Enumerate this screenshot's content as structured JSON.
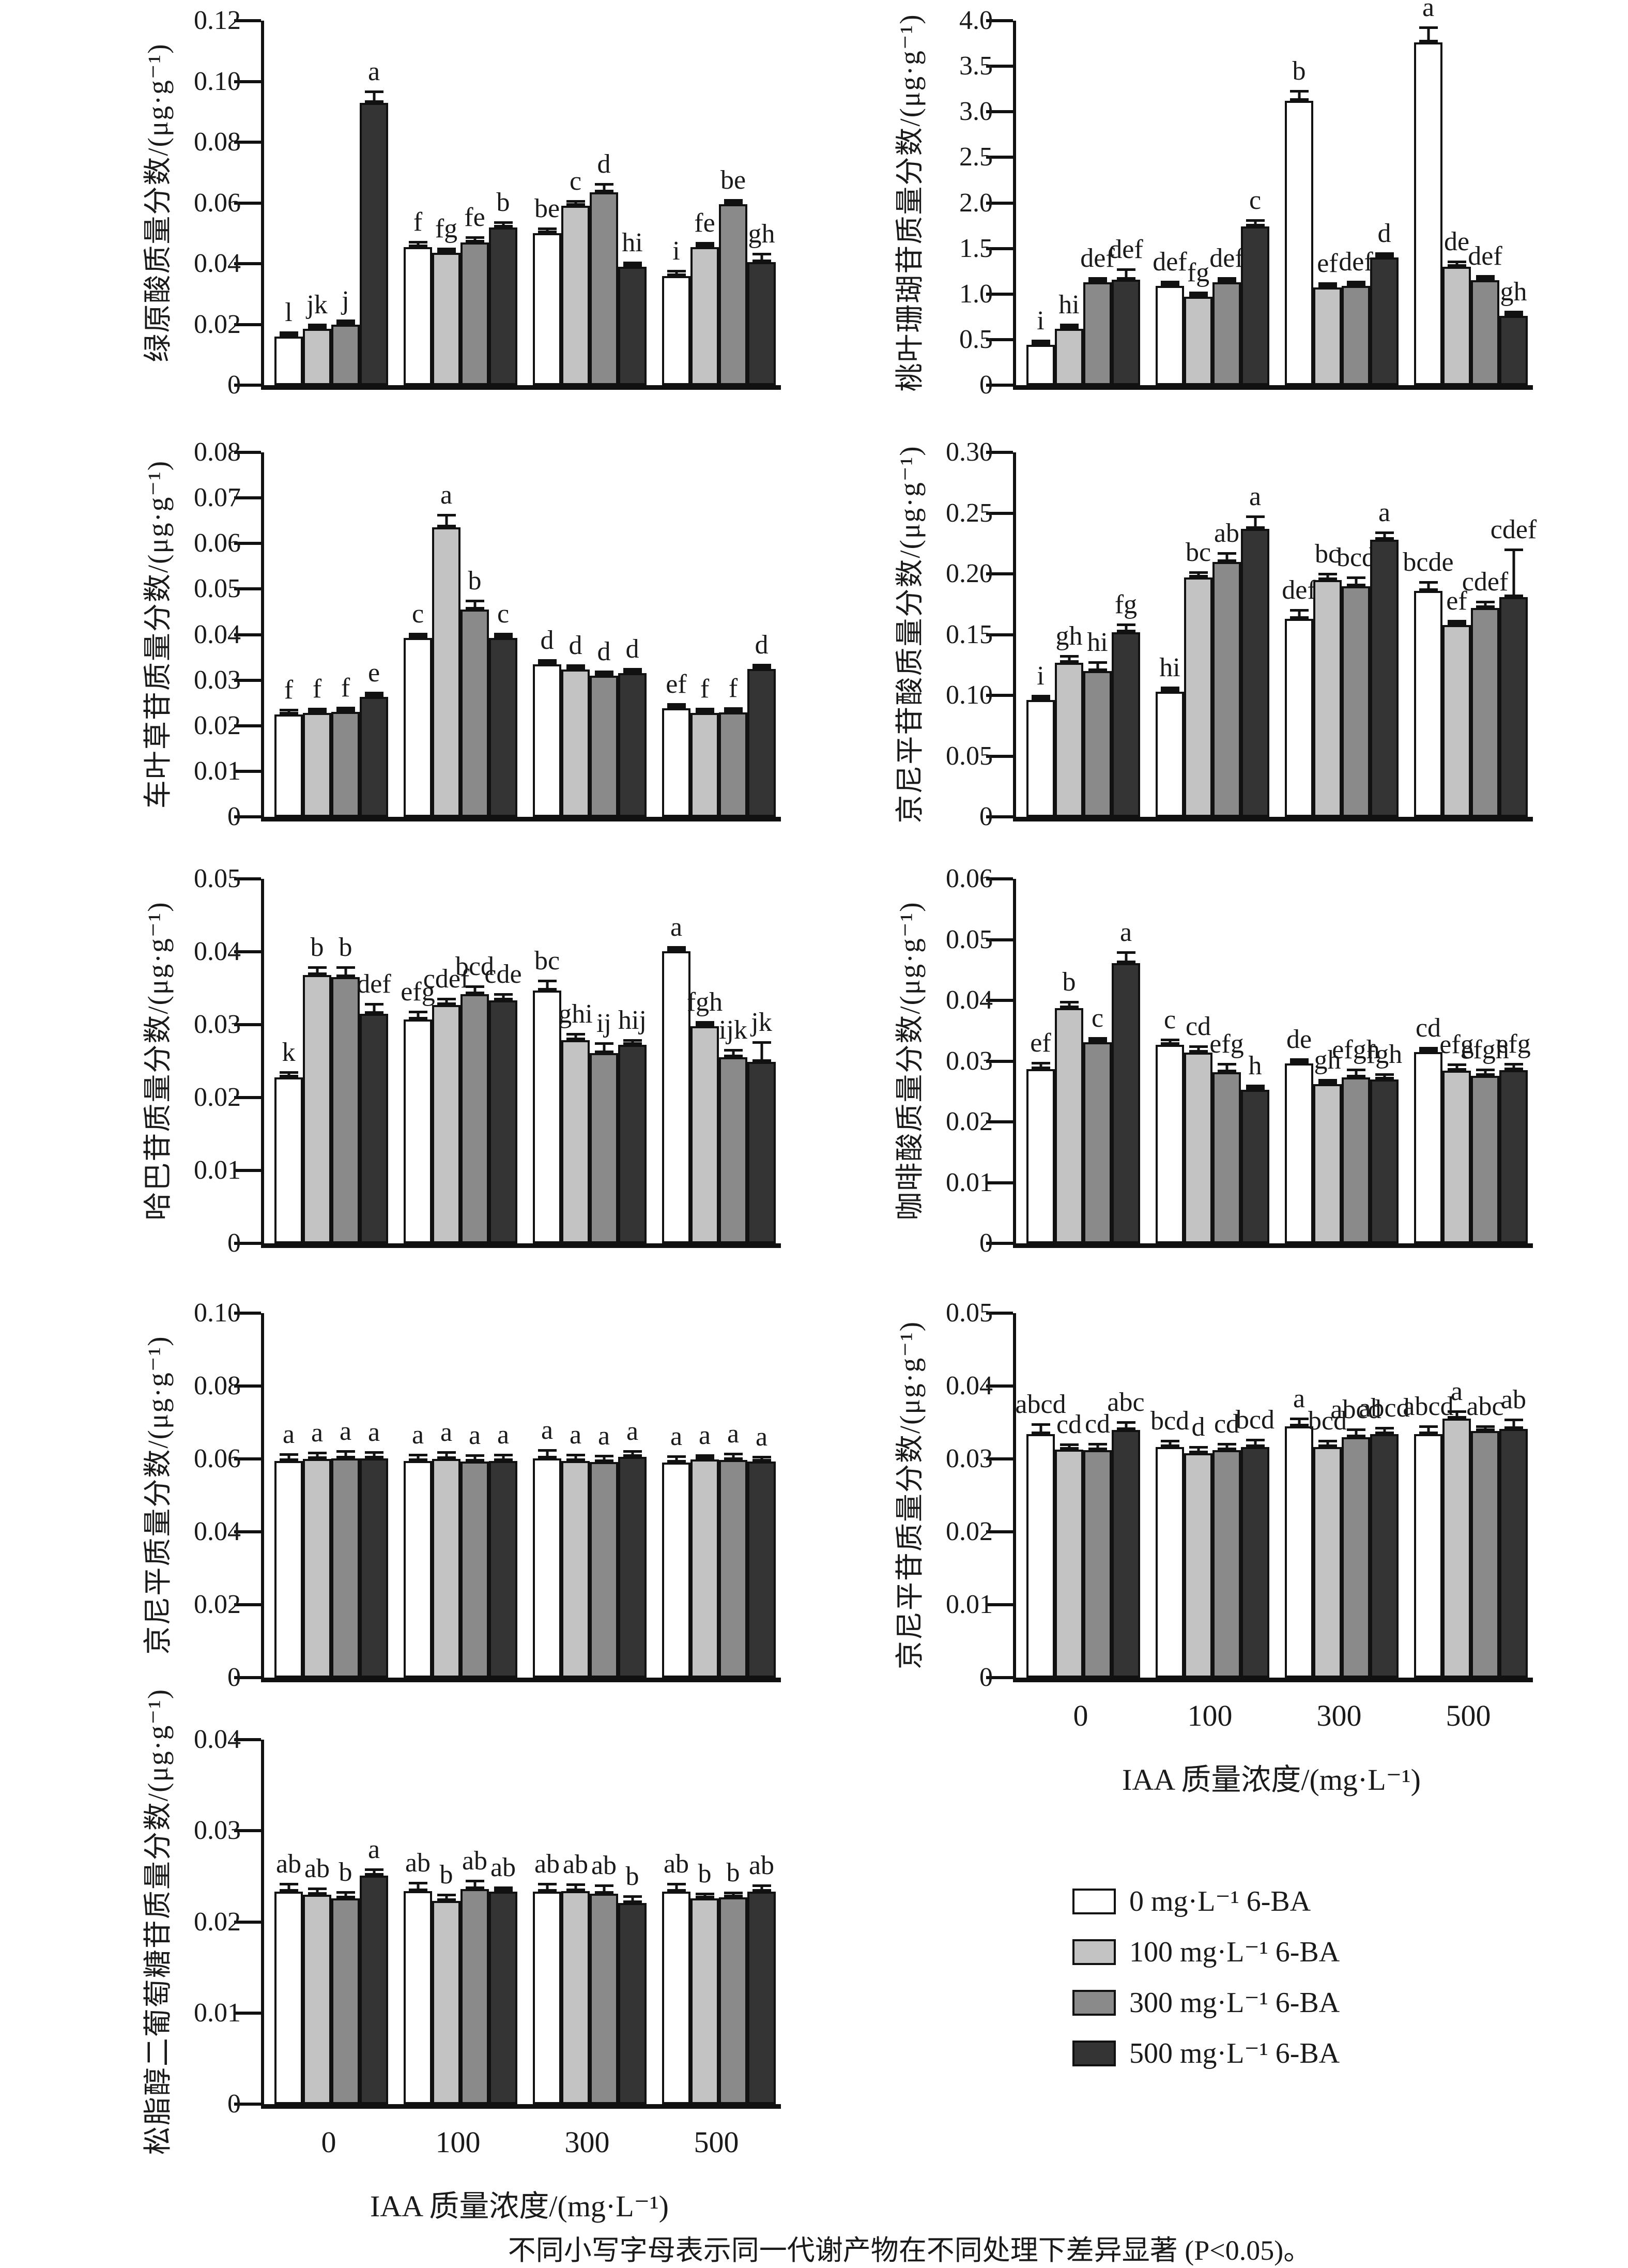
{
  "figure": {
    "caption": "不同小写字母表示同一代谢产物在不同处理下差异显著 (P<0.05)。"
  },
  "legend": {
    "entries": [
      {
        "label": "0 mg·L⁻¹ 6-BA",
        "color": "#ffffff"
      },
      {
        "label": "100 mg·L⁻¹ 6-BA",
        "color": "#c3c3c3"
      },
      {
        "label": "300 mg·L⁻¹ 6-BA",
        "color": "#8a8a8a"
      },
      {
        "label": "500 mg·L⁻¹ 6-BA",
        "color": "#343434"
      }
    ]
  },
  "chart_data": [
    {
      "id": "chlorogenic-acid",
      "type": "bar",
      "ylabel": "绿原酸质量分数/(μg·g⁻¹)",
      "ylim": [
        0,
        0.12
      ],
      "yticks": [
        "0",
        "0.02",
        "0.04",
        "0.06",
        "0.08",
        "0.10",
        "0.12"
      ],
      "categories": [
        "0",
        "100",
        "300",
        "500"
      ],
      "show_x_ticks": false,
      "series": [
        {
          "name": "0 mg·L⁻¹ 6-BA",
          "values": [
            0.016,
            0.0455,
            0.05,
            0.036
          ],
          "errors": [
            0.001,
            0.002,
            0.002,
            0.002
          ],
          "letters": [
            "l",
            "f",
            "be",
            "i"
          ]
        },
        {
          "name": "100 mg·L⁻¹ 6-BA",
          "values": [
            0.0185,
            0.0435,
            0.059,
            0.0455
          ],
          "errors": [
            0.001,
            0.0015,
            0.002,
            0.0015
          ],
          "letters": [
            "jk",
            "fg",
            "c",
            "fe"
          ]
        },
        {
          "name": "300 mg·L⁻¹ 6-BA",
          "values": [
            0.02,
            0.047,
            0.0635,
            0.0595
          ],
          "errors": [
            0.0015,
            0.002,
            0.003,
            0.0015
          ],
          "letters": [
            "j",
            "fe",
            "d",
            "be"
          ]
        },
        {
          "name": "500 mg·L⁻¹ 6-BA",
          "values": [
            0.093,
            0.052,
            0.039,
            0.0405
          ],
          "errors": [
            0.004,
            0.002,
            0.0015,
            0.003
          ],
          "letters": [
            "a",
            "b",
            "hi",
            "gh"
          ]
        }
      ]
    },
    {
      "id": "aucubin",
      "type": "bar",
      "ylabel": "桃叶珊瑚苷质量分数/(μg·g⁻¹)",
      "ylim": [
        0,
        4.0
      ],
      "yticks": [
        "0",
        "0.5",
        "1.0",
        "1.5",
        "2.0",
        "2.5",
        "3.0",
        "3.5",
        "4.0"
      ],
      "categories": [
        "0",
        "100",
        "300",
        "500"
      ],
      "show_x_ticks": false,
      "series": [
        {
          "name": "0 mg·L⁻¹ 6-BA",
          "values": [
            0.44,
            1.09,
            3.12,
            3.76
          ],
          "errors": [
            0.02,
            0.05,
            0.12,
            0.18
          ],
          "letters": [
            "i",
            "def",
            "b",
            "a"
          ]
        },
        {
          "name": "100 mg·L⁻¹ 6-BA",
          "values": [
            0.62,
            0.97,
            1.07,
            1.3
          ],
          "errors": [
            0.03,
            0.04,
            0.05,
            0.07
          ],
          "letters": [
            "hi",
            "fg",
            "ef",
            "de"
          ]
        },
        {
          "name": "300 mg·L⁻¹ 6-BA",
          "values": [
            1.13,
            1.13,
            1.09,
            1.15
          ],
          "errors": [
            0.05,
            0.05,
            0.05,
            0.06
          ],
          "letters": [
            "def",
            "def",
            "def",
            "def"
          ]
        },
        {
          "name": "500 mg·L⁻¹ 6-BA",
          "values": [
            1.16,
            1.74,
            1.4,
            0.76
          ],
          "errors": [
            0.12,
            0.08,
            0.03,
            0.05
          ],
          "letters": [
            "def",
            "c",
            "d",
            "gh"
          ]
        }
      ]
    },
    {
      "id": "asperuloside",
      "type": "bar",
      "ylabel": "车叶草苷质量分数/(μg·g⁻¹)",
      "ylim": [
        0,
        0.08
      ],
      "yticks": [
        "0",
        "0.01",
        "0.02",
        "0.03",
        "0.04",
        "0.05",
        "0.06",
        "0.07",
        "0.08"
      ],
      "categories": [
        "0",
        "100",
        "300",
        "500"
      ],
      "show_x_ticks": false,
      "series": [
        {
          "name": "0 mg·L⁻¹ 6-BA",
          "values": [
            0.0225,
            0.0393,
            0.0335,
            0.0238
          ],
          "errors": [
            0.0012,
            0.0008,
            0.0008,
            0.001
          ],
          "letters": [
            "f",
            "c",
            "d",
            "ef"
          ]
        },
        {
          "name": "100 mg·L⁻¹ 6-BA",
          "values": [
            0.0228,
            0.0635,
            0.0323,
            0.0228
          ],
          "errors": [
            0.0012,
            0.003,
            0.001,
            0.001
          ],
          "letters": [
            "f",
            "a",
            "d",
            "f"
          ]
        },
        {
          "name": "300 mg·L⁻¹ 6-BA",
          "values": [
            0.023,
            0.0455,
            0.031,
            0.0229
          ],
          "errors": [
            0.0012,
            0.0022,
            0.0008,
            0.001
          ],
          "letters": [
            "f",
            "b",
            "d",
            "f"
          ]
        },
        {
          "name": "500 mg·L⁻¹ 6-BA",
          "values": [
            0.0263,
            0.0393,
            0.0315,
            0.0325
          ],
          "errors": [
            0.0012,
            0.0008,
            0.0008,
            0.001
          ],
          "letters": [
            "e",
            "c",
            "d",
            "d"
          ]
        }
      ]
    },
    {
      "id": "geniposidic-acid",
      "type": "bar",
      "ylabel": "京尼平苷酸质量分数/(μg·g⁻¹)",
      "ylim": [
        0,
        0.3
      ],
      "yticks": [
        "0",
        "0.05",
        "0.10",
        "0.15",
        "0.20",
        "0.25",
        "0.30"
      ],
      "categories": [
        "0",
        "100",
        "300",
        "500"
      ],
      "show_x_ticks": false,
      "series": [
        {
          "name": "0 mg·L⁻¹ 6-BA",
          "values": [
            0.096,
            0.103,
            0.163,
            0.186
          ],
          "errors": [
            0.004,
            0.004,
            0.008,
            0.008
          ],
          "letters": [
            "i",
            "hi",
            "def",
            "bcde"
          ]
        },
        {
          "name": "100 mg·L⁻¹ 6-BA",
          "values": [
            0.127,
            0.197,
            0.195,
            0.158
          ],
          "errors": [
            0.006,
            0.005,
            0.006,
            0.004
          ],
          "letters": [
            "gh",
            "bc",
            "bc",
            "ef"
          ]
        },
        {
          "name": "300 mg·L⁻¹ 6-BA",
          "values": [
            0.12,
            0.21,
            0.19,
            0.172
          ],
          "errors": [
            0.008,
            0.008,
            0.008,
            0.006
          ],
          "letters": [
            "hi",
            "ab",
            "bcd",
            "cdef"
          ]
        },
        {
          "name": "500 mg·L⁻¹ 6-BA",
          "values": [
            0.152,
            0.237,
            0.228,
            0.181
          ],
          "errors": [
            0.007,
            0.011,
            0.007,
            0.04
          ],
          "letters": [
            "fg",
            "a",
            "a",
            "cdef"
          ]
        }
      ]
    },
    {
      "id": "harpagide",
      "type": "bar",
      "ylabel": "哈巴苷质量分数/(μg·g⁻¹)",
      "ylim": [
        0,
        0.05
      ],
      "yticks": [
        "0",
        "0.01",
        "0.02",
        "0.03",
        "0.04",
        "0.05"
      ],
      "categories": [
        "0",
        "100",
        "300",
        "500"
      ],
      "show_x_ticks": false,
      "series": [
        {
          "name": "0 mg·L⁻¹ 6-BA",
          "values": [
            0.0228,
            0.0307,
            0.0347,
            0.0401
          ],
          "errors": [
            0.0008,
            0.0012,
            0.0015,
            0.0004
          ],
          "letters": [
            "k",
            "efg",
            "bc",
            "a"
          ]
        },
        {
          "name": "100 mg·L⁻¹ 6-BA",
          "values": [
            0.0368,
            0.0327,
            0.0279,
            0.0298
          ],
          "errors": [
            0.0012,
            0.001,
            0.001,
            0.0003
          ],
          "letters": [
            "b",
            "cdef",
            "ghi",
            "fgh"
          ]
        },
        {
          "name": "300 mg·L⁻¹ 6-BA",
          "values": [
            0.0365,
            0.0342,
            0.0261,
            0.0255
          ],
          "errors": [
            0.0015,
            0.0012,
            0.0015,
            0.0012
          ],
          "letters": [
            "b",
            "bcd",
            "ij",
            "ijk"
          ]
        },
        {
          "name": "500 mg·L⁻¹ 6-BA",
          "values": [
            0.0315,
            0.0333,
            0.0272,
            0.0249
          ],
          "errors": [
            0.0015,
            0.001,
            0.0008,
            0.0028
          ],
          "letters": [
            "def",
            "cde",
            "hij",
            "jk"
          ]
        }
      ]
    },
    {
      "id": "caffeic-acid",
      "type": "bar",
      "ylabel": "咖啡酸质量分数/(μg·g⁻¹)",
      "ylim": [
        0,
        0.06
      ],
      "yticks": [
        "0",
        "0.01",
        "0.02",
        "0.03",
        "0.04",
        "0.05",
        "0.06"
      ],
      "categories": [
        "0",
        "100",
        "300",
        "500"
      ],
      "show_x_ticks": false,
      "series": [
        {
          "name": "0 mg·L⁻¹ 6-BA",
          "values": [
            0.0287,
            0.0327,
            0.0296,
            0.0315
          ],
          "errors": [
            0.0012,
            0.001,
            0.0008,
            0.0008
          ],
          "letters": [
            "ef",
            "c",
            "de",
            "cd"
          ]
        },
        {
          "name": "100 mg·L⁻¹ 6-BA",
          "values": [
            0.0387,
            0.0314,
            0.0262,
            0.0284
          ],
          "errors": [
            0.0012,
            0.0012,
            0.0008,
            0.0012
          ],
          "letters": [
            "b",
            "cd",
            "gh",
            "efg"
          ]
        },
        {
          "name": "300 mg·L⁻¹ 6-BA",
          "values": [
            0.0331,
            0.0282,
            0.0273,
            0.0276
          ],
          "errors": [
            0.0008,
            0.0015,
            0.0015,
            0.0012
          ],
          "letters": [
            "c",
            "efg",
            "efgh",
            "efgh"
          ]
        },
        {
          "name": "500 mg·L⁻¹ 6-BA",
          "values": [
            0.0461,
            0.0253,
            0.027,
            0.0285
          ],
          "errors": [
            0.002,
            0.0008,
            0.001,
            0.0012
          ],
          "letters": [
            "a",
            "h",
            "fgh",
            "efg"
          ]
        }
      ]
    },
    {
      "id": "genipin",
      "type": "bar",
      "ylabel": "京尼平质量分数/(μg·g⁻¹)",
      "ylim": [
        0,
        0.1
      ],
      "yticks": [
        "0",
        "0.02",
        "0.04",
        "0.06",
        "0.08",
        "0.10"
      ],
      "categories": [
        "0",
        "100",
        "300",
        "500"
      ],
      "show_x_ticks": false,
      "series": [
        {
          "name": "0 mg·L⁻¹ 6-BA",
          "values": [
            0.0595,
            0.0594,
            0.0602,
            0.059
          ],
          "errors": [
            0.002,
            0.002,
            0.0025,
            0.002
          ],
          "letters": [
            "a",
            "a",
            "a",
            "a"
          ]
        },
        {
          "name": "100 mg·L⁻¹ 6-BA",
          "values": [
            0.06,
            0.06,
            0.0594,
            0.0598
          ],
          "errors": [
            0.002,
            0.0022,
            0.002,
            0.0015
          ],
          "letters": [
            "a",
            "a",
            "a",
            "a"
          ]
        },
        {
          "name": "300 mg·L⁻¹ 6-BA",
          "values": [
            0.0602,
            0.0593,
            0.0592,
            0.0597
          ],
          "errors": [
            0.0022,
            0.002,
            0.002,
            0.002
          ],
          "letters": [
            "a",
            "a",
            "a",
            "a"
          ]
        },
        {
          "name": "500 mg·L⁻¹ 6-BA",
          "values": [
            0.0601,
            0.0594,
            0.0606,
            0.0593
          ],
          "errors": [
            0.002,
            0.002,
            0.0018,
            0.0015
          ],
          "letters": [
            "a",
            "a",
            "a",
            "a"
          ]
        }
      ]
    },
    {
      "id": "geniposide",
      "type": "bar",
      "ylabel": "京尼平苷质量分数/(μg·g⁻¹)",
      "xlabel": "IAA 质量浓度/(mg·L⁻¹)",
      "ylim": [
        0,
        0.05
      ],
      "yticks": [
        "0",
        "0.01",
        "0.02",
        "0.03",
        "0.04",
        "0.05"
      ],
      "categories": [
        "0",
        "100",
        "300",
        "500"
      ],
      "show_x_ticks": true,
      "series": [
        {
          "name": "0 mg·L⁻¹ 6-BA",
          "values": [
            0.0334,
            0.0316,
            0.0345,
            0.0334
          ],
          "errors": [
            0.0015,
            0.001,
            0.0012,
            0.0012
          ],
          "letters": [
            "abcd",
            "bcd",
            "a",
            "abcd"
          ]
        },
        {
          "name": "100 mg·L⁻¹ 6-BA",
          "values": [
            0.0313,
            0.0308,
            0.0316,
            0.0355
          ],
          "errors": [
            0.0008,
            0.001,
            0.001,
            0.0012
          ],
          "letters": [
            "cd",
            "d",
            "bcd",
            "a"
          ]
        },
        {
          "name": "300 mg·L⁻¹ 6-BA",
          "values": [
            0.0312,
            0.0312,
            0.033,
            0.0338
          ],
          "errors": [
            0.001,
            0.001,
            0.0012,
            0.0008
          ],
          "letters": [
            "cd",
            "cd",
            "abcd",
            "abc"
          ]
        },
        {
          "name": "500 mg·L⁻¹ 6-BA",
          "values": [
            0.034,
            0.0316,
            0.0334,
            0.0341
          ],
          "errors": [
            0.0012,
            0.0012,
            0.001,
            0.0014
          ],
          "letters": [
            "abc",
            "bcd",
            "abcd",
            "ab"
          ]
        }
      ]
    },
    {
      "id": "pinoresinol-diglucoside",
      "type": "bar",
      "ylabel": "松脂醇二葡萄糖苷质量分数/(μg·g⁻¹)",
      "xlabel": "IAA 质量浓度/(mg·L⁻¹)",
      "ylim": [
        0,
        0.04
      ],
      "yticks": [
        "0",
        "0.01",
        "0.02",
        "0.03",
        "0.04"
      ],
      "categories": [
        "0",
        "100",
        "300",
        "500"
      ],
      "show_x_ticks": true,
      "series": [
        {
          "name": "0 mg·L⁻¹ 6-BA",
          "values": [
            0.0233,
            0.0234,
            0.0233,
            0.0233
          ],
          "errors": [
            0.001,
            0.001,
            0.001,
            0.001
          ],
          "letters": [
            "ab",
            "ab",
            "ab",
            "ab"
          ]
        },
        {
          "name": "100 mg·L⁻¹ 6-BA",
          "values": [
            0.023,
            0.0223,
            0.0234,
            0.0226
          ],
          "errors": [
            0.0008,
            0.0008,
            0.0008,
            0.0006
          ],
          "letters": [
            "ab",
            "b",
            "ab",
            "b"
          ]
        },
        {
          "name": "300 mg·L⁻¹ 6-BA",
          "values": [
            0.0226,
            0.0236,
            0.0231,
            0.0227
          ],
          "errors": [
            0.0008,
            0.001,
            0.001,
            0.0006
          ],
          "letters": [
            "b",
            "ab",
            "ab",
            "b"
          ]
        },
        {
          "name": "500 mg·L⁻¹ 6-BA",
          "values": [
            0.0251,
            0.0233,
            0.0221,
            0.0233
          ],
          "errors": [
            0.0008,
            0.0006,
            0.0008,
            0.0008
          ],
          "letters": [
            "a",
            "ab",
            "b",
            "ab"
          ]
        }
      ]
    }
  ]
}
